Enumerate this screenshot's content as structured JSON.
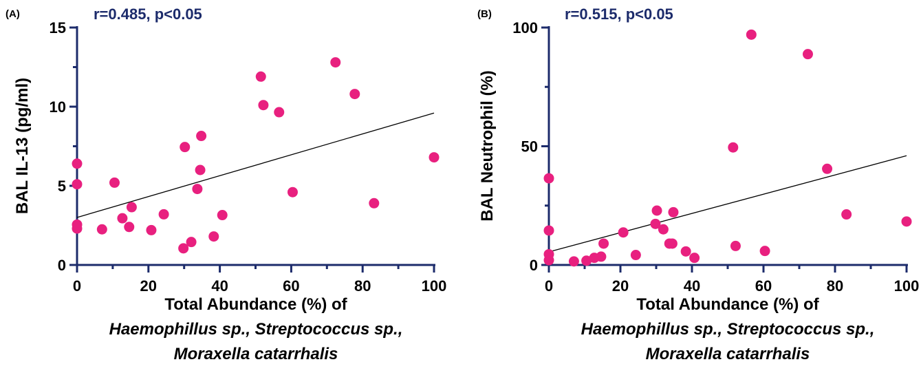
{
  "chart_data": [
    {
      "type": "scatter",
      "panel_label": "(A)",
      "annotation": "r=0.485, p<0.05",
      "ylabel": "BAL IL-13 (pg/ml)",
      "xlabel_line1": "Total Abundance (%) of",
      "xlabel_line2": "Haemophillus sp., Streptococcus sp.,",
      "xlabel_line3": "Moraxella catarrhalis",
      "xlim": [
        0,
        100
      ],
      "ylim": [
        0,
        15
      ],
      "xticks": [
        "0",
        "20",
        "40",
        "60",
        "80",
        "100"
      ],
      "yticks": [
        "0",
        "5",
        "10",
        "15"
      ],
      "xtick_values": [
        0,
        20,
        40,
        60,
        80,
        100
      ],
      "ytick_values": [
        0,
        5,
        10,
        15
      ],
      "grid": false,
      "regression_line": [
        [
          0,
          3.0
        ],
        [
          100,
          9.6
        ]
      ],
      "series": [
        {
          "x": [
            0,
            0,
            0,
            0,
            7,
            10.5,
            12.7,
            14.6,
            15.3,
            20.8,
            24.3,
            29.8,
            30.2,
            32,
            33.7,
            34.5,
            34.8,
            38.3,
            40.7,
            51.5,
            52.2,
            56.6,
            60.4,
            72.4,
            77.8,
            83.2,
            100
          ],
          "y": [
            6.4,
            5.1,
            2.55,
            2.3,
            2.25,
            5.2,
            2.95,
            2.4,
            3.65,
            2.2,
            3.2,
            1.05,
            7.45,
            1.45,
            4.8,
            6.0,
            8.15,
            1.8,
            3.15,
            11.9,
            10.1,
            9.65,
            4.6,
            12.8,
            10.8,
            3.9,
            6.8
          ],
          "color": "#e8207f"
        }
      ]
    },
    {
      "type": "scatter",
      "panel_label": "(B)",
      "annotation": "r=0.515, p<0.05",
      "ylabel": "BAL Neutrophil (%)",
      "xlabel_line1": "Total Abundance (%) of",
      "xlabel_line2": "Haemophillus sp., Streptococcus sp.,",
      "xlabel_line3": "Moraxella catarrhalis",
      "xlim": [
        0,
        100
      ],
      "ylim": [
        0,
        100
      ],
      "xticks": [
        "0",
        "20",
        "40",
        "60",
        "80",
        "100"
      ],
      "yticks": [
        "0",
        "50",
        "100"
      ],
      "xtick_values": [
        0,
        20,
        40,
        60,
        80,
        100
      ],
      "ytick_values": [
        0,
        50,
        100
      ],
      "grid": false,
      "regression_line": [
        [
          0,
          5.5
        ],
        [
          100,
          46.0
        ]
      ],
      "series": [
        {
          "x": [
            0,
            0,
            0,
            0,
            7,
            10.5,
            12.7,
            14.6,
            15.3,
            20.8,
            24.3,
            29.8,
            30.2,
            32,
            33.7,
            34.5,
            34.8,
            38.3,
            40.7,
            51.5,
            52.2,
            56.6,
            60.4,
            72.4,
            77.8,
            83.2,
            100
          ],
          "y": [
            36.5,
            14.5,
            4.5,
            2.0,
            1.5,
            1.8,
            3.0,
            3.5,
            9.0,
            13.7,
            4.2,
            17.3,
            22.9,
            15.0,
            9.0,
            9.0,
            22.2,
            5.7,
            3.0,
            49.5,
            8.0,
            97.0,
            5.9,
            88.8,
            40.5,
            21.3,
            18.3
          ],
          "color": "#e8207f"
        }
      ]
    }
  ]
}
